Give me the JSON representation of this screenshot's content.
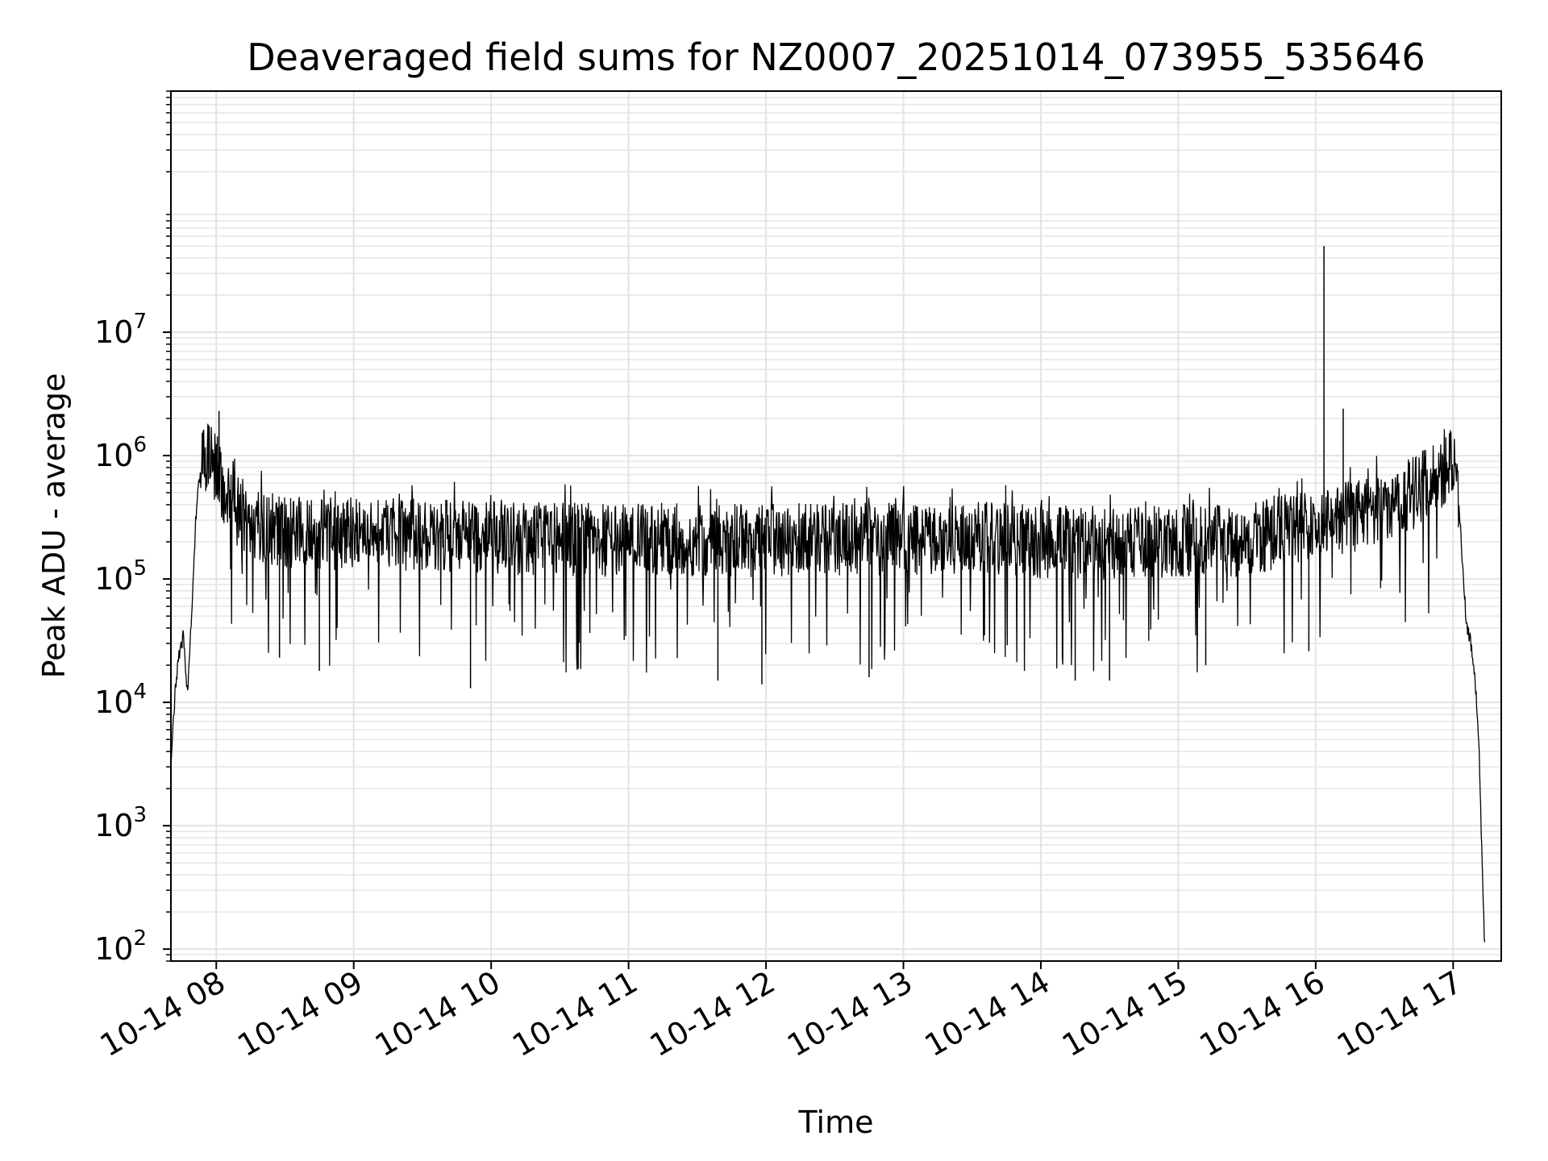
{
  "chart_data": {
    "type": "line",
    "title": "Deaveraged field sums for NZ0007_20251014_073955_535646",
    "xlabel": "Time",
    "ylabel": "Peak ADU - average",
    "yscale": "log",
    "ylim": [
      80,
      900000000
    ],
    "xlim_hours": [
      7.67,
      17.35
    ],
    "grid": true,
    "x_tick_labels": [
      "10-14 08",
      "10-14 09",
      "10-14 10",
      "10-14 11",
      "10-14 12",
      "10-14 13",
      "10-14 14",
      "10-14 15",
      "10-14 16",
      "10-14 17"
    ],
    "x_tick_hours": [
      8,
      9,
      10,
      11,
      12,
      13,
      14,
      15,
      16,
      17
    ],
    "y_tick_labels": [
      {
        "base": "10",
        "exp": "2"
      },
      {
        "base": "10",
        "exp": "3"
      },
      {
        "base": "10",
        "exp": "4"
      },
      {
        "base": "10",
        "exp": "5"
      },
      {
        "base": "10",
        "exp": "6"
      },
      {
        "base": "10",
        "exp": "7"
      }
    ],
    "y_tick_values": [
      100,
      1000,
      10000,
      100000,
      1000000,
      10000000
    ],
    "series": [
      {
        "name": "field sums",
        "color": "#000000",
        "envelope": {
          "x_hours": [
            7.67,
            7.7,
            7.73,
            7.76,
            7.79,
            7.82,
            7.85,
            7.88,
            7.92,
            7.96,
            8.0,
            8.05,
            8.1,
            8.2,
            8.3,
            8.45,
            8.6,
            8.8,
            9.0,
            9.5,
            10.0,
            10.5,
            11.0,
            11.5,
            12.0,
            12.5,
            13.0,
            13.5,
            14.0,
            14.5,
            15.0,
            15.5,
            15.8,
            16.0,
            16.2,
            16.4,
            16.6,
            16.8,
            16.95,
            17.0,
            17.03,
            17.05,
            17.08,
            17.1,
            17.13,
            17.16,
            17.19,
            17.21,
            17.23
          ],
          "median": [
            3000,
            12000,
            25000,
            35000,
            12000,
            50000,
            300000,
            700000,
            1000000,
            900000,
            800000,
            550000,
            420000,
            320000,
            280000,
            250000,
            240000,
            230000,
            240000,
            230000,
            215000,
            210000,
            205000,
            210000,
            205000,
            210000,
            215000,
            215000,
            200000,
            195000,
            200000,
            210000,
            250000,
            280000,
            310000,
            350000,
            420000,
            580000,
            780000,
            850000,
            700000,
            300000,
            80000,
            40000,
            30000,
            15000,
            4000,
            500,
            100
          ]
        },
        "spikes": [
          {
            "hour": 16.06,
            "value": 50000000
          },
          {
            "hour": 16.2,
            "value": 2400000
          },
          {
            "hour": 8.02,
            "value": 2300000
          }
        ],
        "dips": [
          {
            "hour": 8.46,
            "value": 23000
          },
          {
            "hour": 8.75,
            "value": 18000
          },
          {
            "hour": 9.85,
            "value": 13000
          },
          {
            "hour": 11.65,
            "value": 15000
          },
          {
            "hour": 11.97,
            "value": 14000
          },
          {
            "hour": 12.75,
            "value": 16000
          },
          {
            "hour": 14.25,
            "value": 15000
          },
          {
            "hour": 14.5,
            "value": 15000
          },
          {
            "hour": 15.2,
            "value": 20000
          },
          {
            "hour": 15.95,
            "value": 26000
          }
        ]
      }
    ]
  }
}
